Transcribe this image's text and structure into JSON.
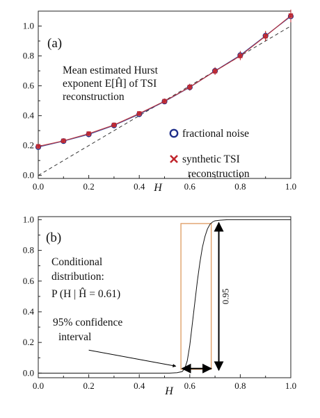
{
  "colors": {
    "axis": "#222222",
    "fractional_noise": "#1f2f8a",
    "synthetic_tsi": "#c0262d",
    "dashed_reference": "#333333",
    "cdf_line": "#111111",
    "confidence_box": "#e0a06a",
    "arrows": "#000000"
  },
  "chart_data": [
    {
      "id": "panel-a",
      "type": "line",
      "panel_label": "(a)",
      "annotation_lines": [
        "Mean estimated Hurst",
        "exponent E[Ĥ] of TSI",
        "reconstruction"
      ],
      "xlabel": "H",
      "ylabel": "",
      "xlim": [
        0.0,
        1.0
      ],
      "ylim": [
        -0.02,
        1.1
      ],
      "xticks": [
        "0.0",
        "0.2",
        "0.4",
        "0.6",
        "0.8",
        "1.0"
      ],
      "yticks": [
        "0.0",
        "0.2",
        "0.4",
        "0.6",
        "0.8",
        "1.0"
      ],
      "legend": [
        {
          "marker": "circle",
          "label": "fractional noise"
        },
        {
          "marker": "cross",
          "label": "synthetic TSI reconstruction"
        }
      ],
      "legend_label_lines": [
        [
          "fractional noise"
        ],
        [
          "synthetic TSI",
          "reconstruction"
        ]
      ],
      "reference_line": {
        "style": "dashed",
        "x": [
          0.0,
          1.0
        ],
        "y": [
          0.0,
          1.0
        ]
      },
      "x": [
        0.0,
        0.1,
        0.2,
        0.3,
        0.4,
        0.5,
        0.6,
        0.7,
        0.8,
        0.9,
        1.0
      ],
      "series": [
        {
          "key": "fractional_noise",
          "marker": "circle",
          "values": [
            0.19,
            0.23,
            0.275,
            0.335,
            0.41,
            0.495,
            0.59,
            0.7,
            0.805,
            0.935,
            1.065
          ],
          "err": [
            0.012,
            0.013,
            0.014,
            0.015,
            0.016,
            0.018,
            0.022,
            0.025,
            0.028,
            0.032,
            0.04
          ]
        },
        {
          "key": "synthetic_tsi",
          "marker": "cross",
          "values": [
            0.195,
            0.232,
            0.28,
            0.338,
            0.415,
            0.497,
            0.592,
            0.698,
            0.8,
            0.932,
            1.07
          ],
          "err": [
            0.012,
            0.013,
            0.014,
            0.015,
            0.016,
            0.018,
            0.022,
            0.025,
            0.028,
            0.032,
            0.04
          ]
        }
      ]
    },
    {
      "id": "panel-b",
      "type": "line",
      "panel_label": "(b)",
      "annotation_lines": [
        "Conditional",
        "distribution:",
        "P (H | Ĥ = 0.61)",
        "95% confidence",
        "interval"
      ],
      "xlabel": "H",
      "ylabel": "",
      "xlim": [
        0.0,
        1.0
      ],
      "ylim": [
        -0.03,
        1.02
      ],
      "xticks": [
        "0.0",
        "0.2",
        "0.4",
        "0.6",
        "0.8",
        "1.0"
      ],
      "yticks": [
        "0.0",
        "0.2",
        "0.4",
        "0.6",
        "0.8",
        "1.0"
      ],
      "cdf": {
        "x": [
          0.0,
          0.52,
          0.55,
          0.57,
          0.58,
          0.59,
          0.6,
          0.61,
          0.62,
          0.63,
          0.64,
          0.65,
          0.66,
          0.67,
          0.68,
          0.69,
          0.7,
          0.72,
          0.75,
          0.8,
          1.0
        ],
        "y": [
          0.0,
          0.0,
          0.003,
          0.01,
          0.03,
          0.08,
          0.18,
          0.32,
          0.46,
          0.6,
          0.72,
          0.82,
          0.89,
          0.94,
          0.97,
          0.985,
          0.993,
          0.997,
          1.0,
          1.0,
          1.0
        ]
      },
      "confidence_interval": {
        "x": [
          0.565,
          0.685
        ],
        "y": [
          0.025,
          0.975
        ]
      },
      "vertical_arrow_label": "0.95",
      "vertical_arrow": {
        "x": 0.715,
        "y": [
          0.02,
          0.98
        ]
      },
      "horizontal_arrow": {
        "x": [
          0.57,
          0.685
        ],
        "y": 0.03
      },
      "pointer_arrow": {
        "from": [
          0.2,
          0.15
        ],
        "to": [
          0.545,
          0.045
        ]
      }
    }
  ]
}
